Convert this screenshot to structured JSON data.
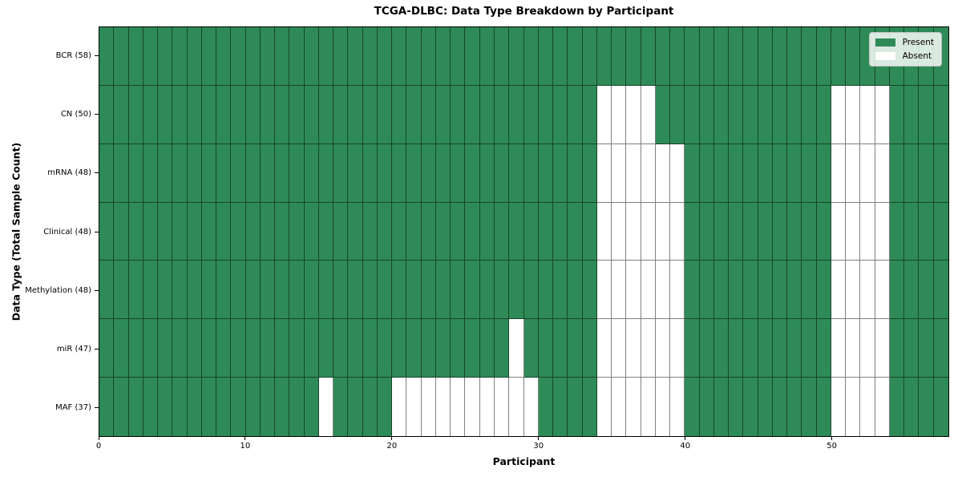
{
  "chart_data": {
    "type": "heatmap",
    "title": "TCGA-DLBC: Data Type Breakdown by Participant",
    "xlabel": "Participant",
    "ylabel": "Data Type (Total Sample Count)",
    "x_ticks": [
      0,
      10,
      20,
      30,
      40,
      50
    ],
    "n_participants": 58,
    "grid_on": true,
    "legend_position": "upper right",
    "colors": {
      "present": "#2e8b57",
      "absent": "#ffffff",
      "cell_edge": "rgba(0,0,0,0.5)"
    },
    "legend": [
      {
        "label": "Present",
        "value": "present"
      },
      {
        "label": "Absent",
        "value": "absent"
      }
    ],
    "rows": [
      {
        "label": "BCR (58)",
        "data_type": "BCR",
        "total_samples": 58,
        "absent_participants": []
      },
      {
        "label": "CN (50)",
        "data_type": "CN",
        "total_samples": 50,
        "absent_participants": [
          34,
          35,
          36,
          37,
          50,
          51,
          52,
          53
        ]
      },
      {
        "label": "mRNA (48)",
        "data_type": "mRNA",
        "total_samples": 48,
        "absent_participants": [
          34,
          35,
          36,
          37,
          38,
          39,
          50,
          51,
          52,
          53
        ]
      },
      {
        "label": "Clinical (48)",
        "data_type": "Clinical",
        "total_samples": 48,
        "absent_participants": [
          34,
          35,
          36,
          37,
          38,
          39,
          50,
          51,
          52,
          53
        ]
      },
      {
        "label": "Methylation (48)",
        "data_type": "Methylation",
        "total_samples": 48,
        "absent_participants": [
          34,
          35,
          36,
          37,
          38,
          39,
          50,
          51,
          52,
          53
        ]
      },
      {
        "label": "miR (47)",
        "data_type": "miR",
        "total_samples": 47,
        "absent_participants": [
          28,
          34,
          35,
          36,
          37,
          38,
          39,
          50,
          51,
          52,
          53
        ]
      },
      {
        "label": "MAF (37)",
        "data_type": "MAF",
        "total_samples": 37,
        "absent_participants": [
          15,
          20,
          21,
          22,
          23,
          24,
          25,
          26,
          27,
          28,
          29,
          34,
          35,
          36,
          37,
          38,
          39,
          50,
          51,
          52,
          53
        ]
      }
    ]
  }
}
